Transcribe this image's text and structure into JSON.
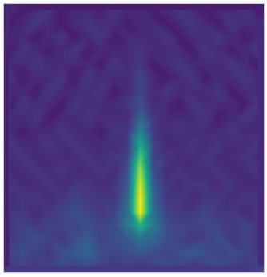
{
  "chart_data": {
    "type": "heatmap",
    "color": "viridis",
    "tick_labels": false,
    "zlim": [
      0,
      25
    ],
    "cells": [
      [
        3,
        2,
        3,
        4,
        2,
        3,
        3,
        2,
        4,
        3,
        3,
        2,
        3,
        4,
        3,
        2,
        3,
        3,
        4,
        2
      ],
      [
        2,
        3,
        4,
        3,
        2,
        3,
        4,
        3,
        3,
        2,
        3,
        3,
        2,
        3,
        4,
        3,
        2,
        4,
        3,
        3
      ],
      [
        3,
        3,
        2,
        3,
        4,
        2,
        3,
        4,
        2,
        3,
        3,
        3,
        4,
        2,
        3,
        3,
        4,
        3,
        2,
        3
      ],
      [
        2,
        4,
        3,
        2,
        3,
        4,
        2,
        3,
        3,
        3,
        4,
        3,
        3,
        3,
        2,
        4,
        3,
        2,
        3,
        4
      ],
      [
        3,
        3,
        4,
        3,
        3,
        3,
        3,
        2,
        4,
        3,
        4,
        2,
        3,
        4,
        3,
        3,
        3,
        4,
        3,
        2
      ],
      [
        4,
        2,
        3,
        3,
        4,
        2,
        4,
        3,
        3,
        3,
        5,
        3,
        2,
        3,
        4,
        2,
        3,
        3,
        4,
        3
      ],
      [
        3,
        3,
        2,
        4,
        3,
        3,
        3,
        4,
        2,
        3,
        5,
        3,
        4,
        3,
        3,
        3,
        4,
        2,
        3,
        3
      ],
      [
        2,
        4,
        3,
        3,
        2,
        4,
        3,
        3,
        3,
        4,
        6,
        3,
        3,
        2,
        4,
        3,
        3,
        3,
        2,
        4
      ],
      [
        3,
        3,
        4,
        2,
        3,
        3,
        4,
        3,
        3,
        3,
        8,
        4,
        3,
        3,
        3,
        4,
        2,
        3,
        4,
        3
      ],
      [
        3,
        2,
        3,
        3,
        4,
        3,
        3,
        2,
        4,
        4,
        11,
        4,
        3,
        4,
        3,
        3,
        3,
        4,
        3,
        3
      ],
      [
        4,
        3,
        3,
        4,
        3,
        4,
        3,
        3,
        3,
        4,
        15,
        5,
        3,
        3,
        4,
        3,
        4,
        3,
        3,
        4
      ],
      [
        3,
        4,
        3,
        3,
        3,
        3,
        4,
        3,
        4,
        5,
        19,
        5,
        4,
        3,
        3,
        4,
        3,
        3,
        4,
        3
      ],
      [
        3,
        3,
        4,
        3,
        4,
        3,
        3,
        4,
        3,
        6,
        22,
        6,
        3,
        4,
        3,
        3,
        4,
        3,
        3,
        4
      ],
      [
        4,
        3,
        3,
        4,
        3,
        4,
        4,
        3,
        4,
        7,
        24,
        7,
        4,
        3,
        4,
        4,
        3,
        4,
        3,
        3
      ],
      [
        3,
        4,
        4,
        3,
        4,
        5,
        4,
        4,
        4,
        8,
        25,
        8,
        4,
        4,
        3,
        4,
        4,
        3,
        4,
        4
      ],
      [
        4,
        4,
        3,
        4,
        5,
        6,
        5,
        4,
        5,
        9,
        25,
        9,
        5,
        4,
        4,
        5,
        4,
        4,
        3,
        4
      ],
      [
        4,
        5,
        4,
        5,
        5,
        5,
        6,
        5,
        6,
        10,
        16,
        10,
        6,
        5,
        5,
        5,
        5,
        4,
        5,
        4
      ],
      [
        4,
        5,
        6,
        5,
        4,
        6,
        7,
        5,
        6,
        7,
        9,
        8,
        6,
        5,
        4,
        5,
        6,
        4,
        5,
        4
      ],
      [
        5,
        6,
        5,
        4,
        6,
        7,
        8,
        6,
        5,
        6,
        7,
        6,
        5,
        6,
        7,
        6,
        5,
        6,
        5,
        4
      ],
      [
        4,
        5,
        4,
        5,
        6,
        5,
        6,
        5,
        4,
        5,
        4,
        5,
        6,
        5,
        4,
        5,
        6,
        5,
        4,
        5
      ]
    ]
  }
}
